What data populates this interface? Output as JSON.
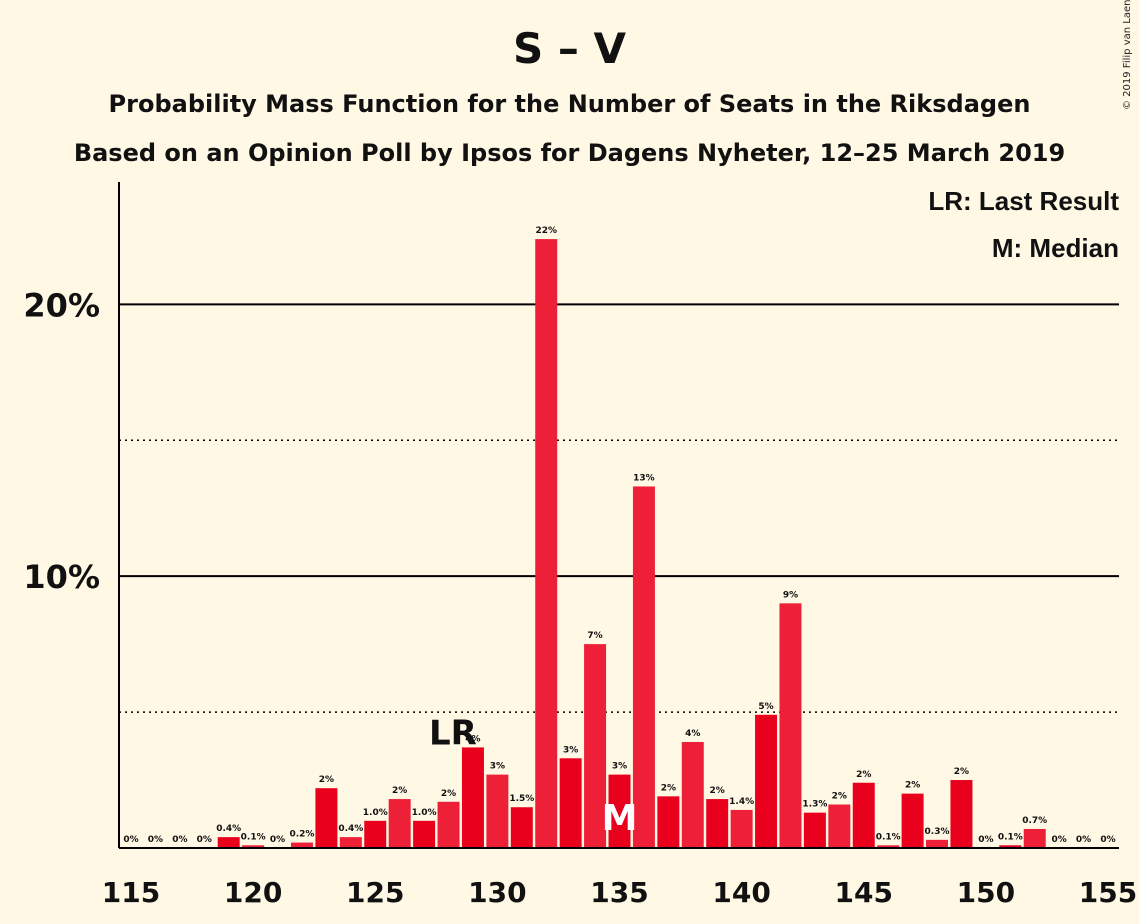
{
  "title": "S – V",
  "subtitle1": "Probability Mass Function for the Number of Seats in the Riksdagen",
  "subtitle2": "Based on an Opinion Poll by Ipsos for Dagens Nyheter, 12–25 March 2019",
  "copyright": "© 2019 Filip van Laenen",
  "legend": {
    "last_result": "LR: Last Result",
    "median": "M: Median"
  },
  "markers": {
    "last_result_label": "LR",
    "last_result_seat": 129,
    "median_label": "M",
    "median_seat": 135
  },
  "colors": {
    "background": "#fff8e5",
    "bar_primary": "#e8001c",
    "bar_secondary": "#ee2037",
    "text": "#111111"
  },
  "chart_data": {
    "type": "bar",
    "title": "S – V",
    "xlabel": "",
    "ylabel": "",
    "xlim": [
      115,
      155
    ],
    "ylim": [
      0,
      24.5
    ],
    "x_ticks": [
      115,
      120,
      125,
      130,
      135,
      140,
      145,
      150,
      155
    ],
    "y_ticks": [
      {
        "value": 10,
        "label": "10%"
      },
      {
        "value": 20,
        "label": "20%"
      }
    ],
    "grid": {
      "solid": [
        10,
        20
      ],
      "dotted": [
        5,
        15
      ]
    },
    "x": [
      115,
      116,
      117,
      118,
      119,
      120,
      121,
      122,
      123,
      124,
      125,
      126,
      127,
      128,
      129,
      130,
      131,
      132,
      133,
      134,
      135,
      136,
      137,
      138,
      139,
      140,
      141,
      142,
      143,
      144,
      145,
      146,
      147,
      148,
      149,
      150,
      151,
      152,
      153,
      154,
      155
    ],
    "values": [
      0,
      0,
      0,
      0,
      0.4,
      0.1,
      0,
      0.2,
      2.2,
      0.4,
      1.0,
      1.8,
      1.0,
      1.7,
      3.7,
      2.7,
      1.5,
      22.4,
      3.3,
      7.5,
      2.7,
      13.3,
      1.9,
      3.9,
      1.8,
      1.4,
      4.9,
      9.0,
      1.3,
      1.6,
      2.4,
      0.1,
      2.0,
      0.3,
      2.5,
      0,
      0.1,
      0.7,
      0,
      0,
      0
    ],
    "value_labels": [
      "0%",
      "0%",
      "0%",
      "0%",
      "0.4%",
      "0.1%",
      "0%",
      "0.2%",
      "2%",
      "0.4%",
      "1.0%",
      "2%",
      "1.0%",
      "2%",
      "4%",
      "3%",
      "1.5%",
      "22%",
      "3%",
      "7%",
      "3%",
      "13%",
      "2%",
      "4%",
      "2%",
      "1.4%",
      "5%",
      "9%",
      "1.3%",
      "2%",
      "2%",
      "0.1%",
      "2%",
      "0.3%",
      "2%",
      "0%",
      "0.1%",
      "0.7%",
      "0%",
      "0%",
      "0%"
    ]
  }
}
